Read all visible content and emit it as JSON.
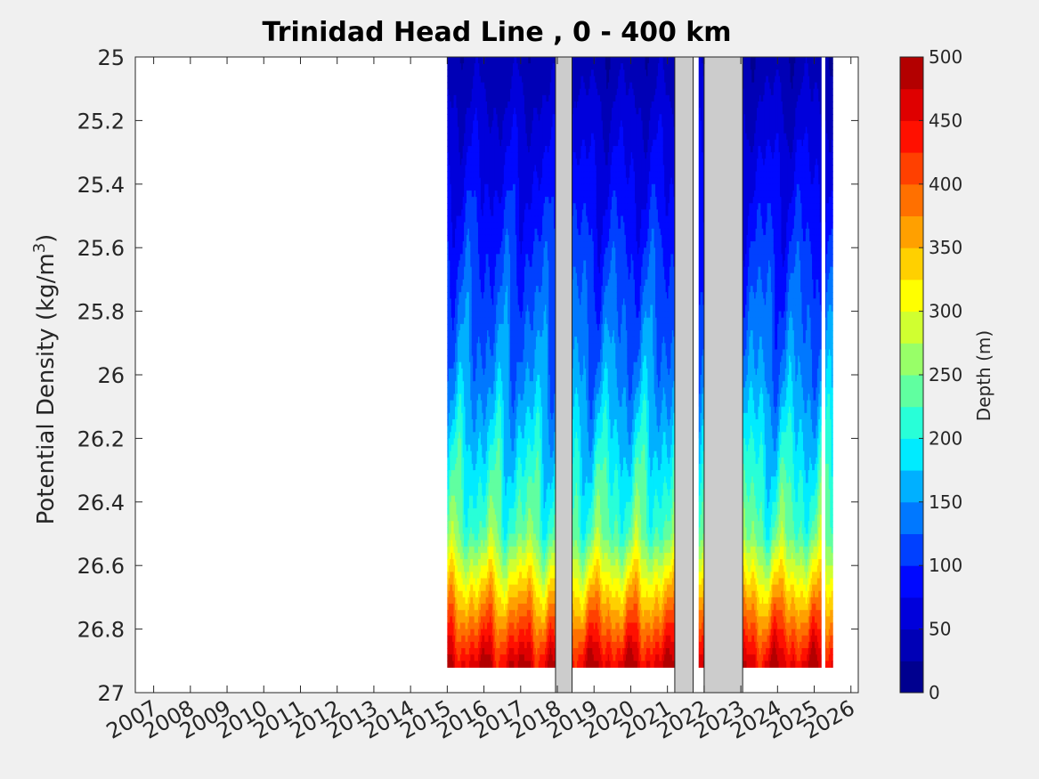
{
  "chart_data": {
    "type": "heatmap",
    "title": "Trinidad Head Line , 0 - 400 km",
    "ylabel_main": "Potential Density (kg/m",
    "ylabel_sup": "3",
    "ylabel_close": ")",
    "xlabel": "",
    "y_reversed": true,
    "ylim": [
      25,
      27
    ],
    "yticks": [
      "25",
      "25.2",
      "25.4",
      "25.6",
      "25.8",
      "26",
      "26.2",
      "26.4",
      "26.6",
      "26.8",
      "27"
    ],
    "xlim": [
      2006.5,
      2026.2
    ],
    "xticks": [
      "2007",
      "2008",
      "2009",
      "2010",
      "2011",
      "2012",
      "2013",
      "2014",
      "2015",
      "2016",
      "2017",
      "2018",
      "2019",
      "2020",
      "2021",
      "2022",
      "2023",
      "2024",
      "2025",
      "2026"
    ],
    "data_extent": {
      "x": [
        2015.0,
        2025.5
      ],
      "max_density": 26.9
    },
    "no_data_gaps": [
      {
        "from": 2017.95,
        "to": 2018.4
      },
      {
        "from": 2021.2,
        "to": 2021.7
      },
      {
        "from": 2022.0,
        "to": 2023.05
      }
    ],
    "white_gaps": [
      {
        "from": 2021.7,
        "to": 2021.85
      },
      {
        "from": 2025.2,
        "to": 2025.3
      }
    ],
    "colorbar": {
      "label": "Depth (m)",
      "range": [
        0,
        500
      ],
      "step": 25,
      "ticks": [
        "0",
        "50",
        "100",
        "150",
        "200",
        "250",
        "300",
        "350",
        "400",
        "450",
        "500"
      ],
      "colors": [
        "#00008f",
        "#0000b6",
        "#0000db",
        "#0008ff",
        "#0040ff",
        "#0078ff",
        "#00b0ff",
        "#00ebff",
        "#28ffd8",
        "#60ffa0",
        "#98ff68",
        "#d0ff30",
        "#ffff00",
        "#ffd000",
        "#ffa000",
        "#ff7000",
        "#ff4000",
        "#ff1000",
        "#df0000",
        "#b30000"
      ]
    },
    "grid": false
  }
}
